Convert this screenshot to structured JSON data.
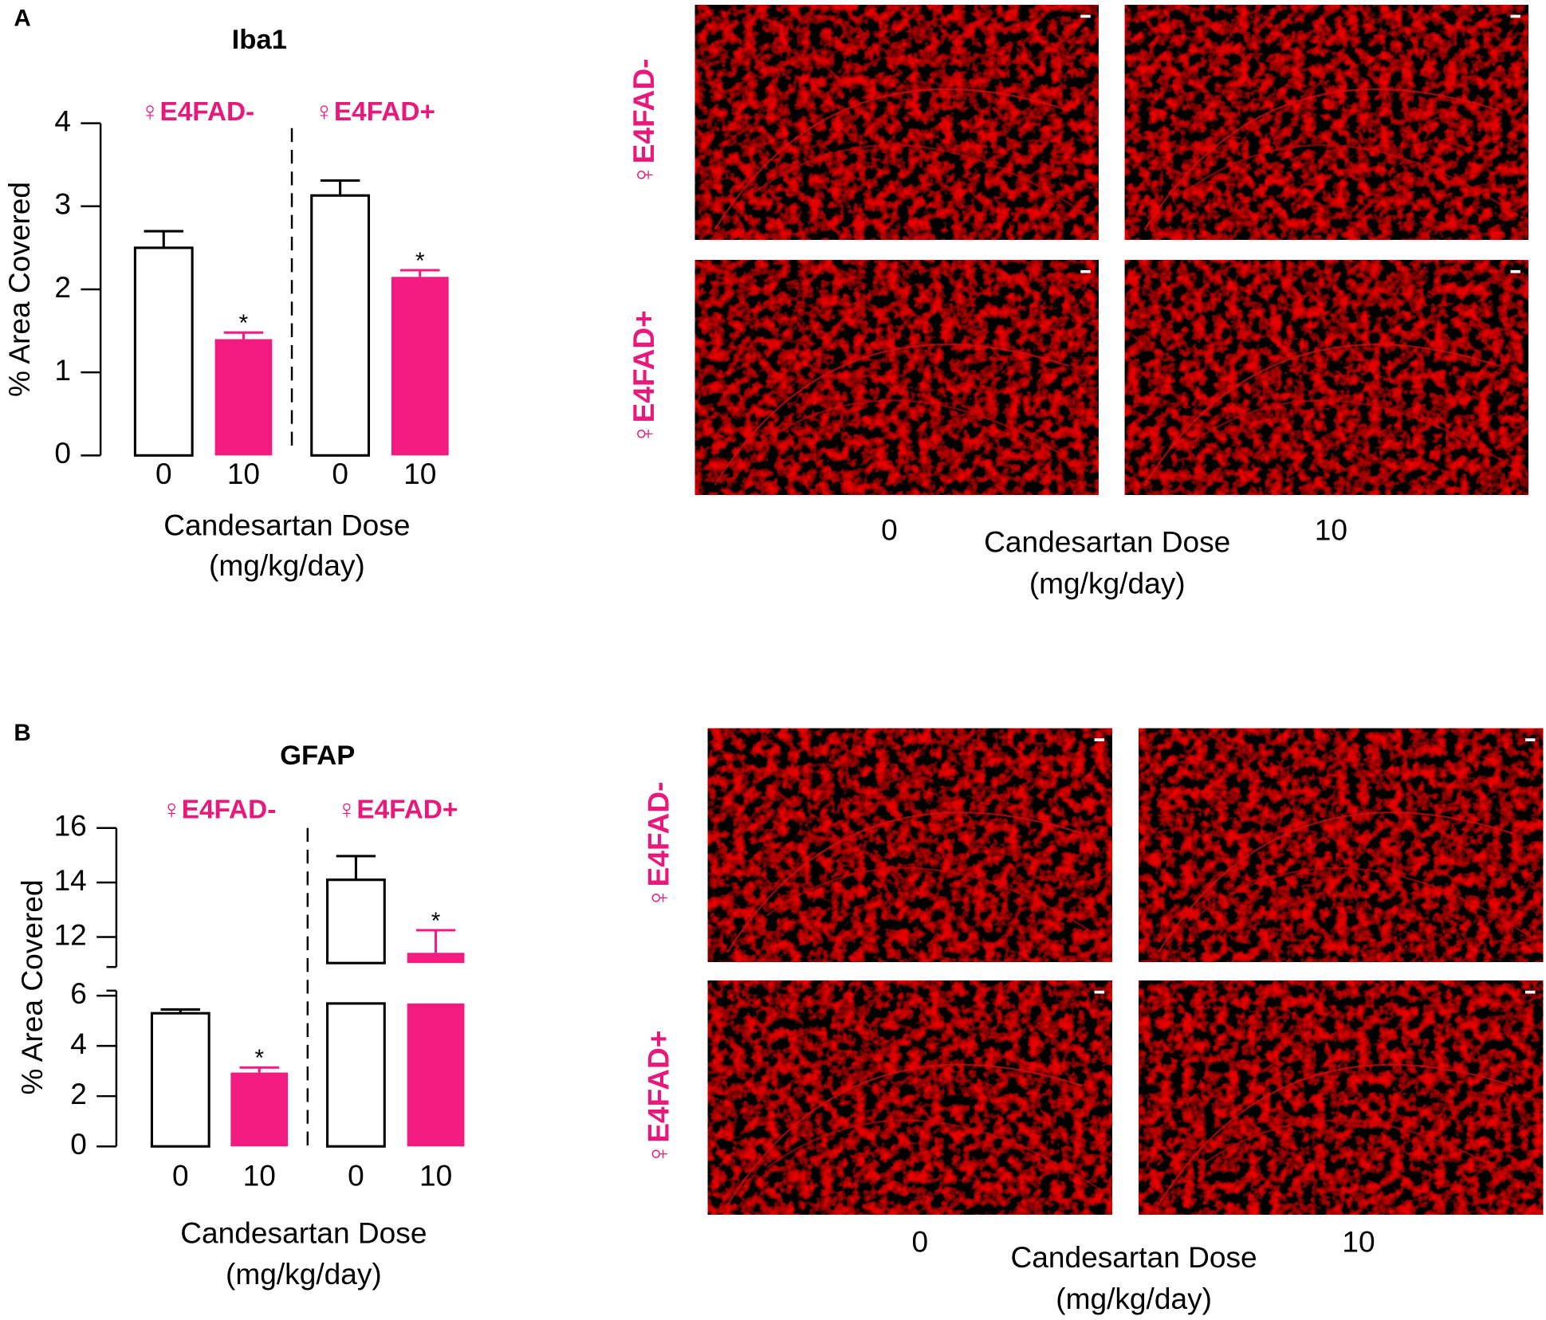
{
  "panel_labels": [
    "A",
    "B"
  ],
  "chart_data": [
    {
      "type": "bar",
      "title": "Iba1",
      "ylabel": "% Area Covered",
      "xlabel": [
        "Candesartan Dose",
        "(mg/kg/day)"
      ],
      "groups": [
        "♀E4FAD-",
        "♀E4FAD+"
      ],
      "categories": [
        "0",
        "10",
        "0",
        "10"
      ],
      "values": [
        2.5,
        1.4,
        3.13,
        2.15
      ],
      "errors": [
        0.2,
        0.08,
        0.18,
        0.08
      ],
      "colors": [
        "#ffffff",
        "#f21b7f",
        "#ffffff",
        "#f21b7f"
      ],
      "significant": [
        false,
        true,
        false,
        true
      ],
      "significance_label": "*",
      "ylim": [
        0,
        4
      ],
      "yticks": [
        0,
        1,
        2,
        3,
        4
      ]
    },
    {
      "type": "bar",
      "title": "GFAP",
      "ylabel": "% Area Covered",
      "xlabel": [
        "Candesartan Dose",
        "(mg/kg/day)"
      ],
      "groups": [
        "♀E4FAD-",
        "♀E4FAD+"
      ],
      "categories": [
        "0",
        "10",
        "0",
        "10"
      ],
      "values": [
        5.3,
        2.94,
        14.1,
        11.42
      ],
      "errors": [
        0.15,
        0.2,
        0.87,
        0.83
      ],
      "colors": [
        "#ffffff",
        "#f21b7f",
        "#ffffff",
        "#f21b7f"
      ],
      "significant": [
        false,
        true,
        false,
        true
      ],
      "significance_label": "*",
      "ylim": [
        0,
        16
      ],
      "ybreak": [
        6.2,
        10.9
      ],
      "yticks": [
        0,
        2,
        4,
        6,
        12,
        14,
        16
      ]
    }
  ],
  "micrographs": [
    {
      "rows": [
        "♀E4FAD-",
        "♀E4FAD+"
      ],
      "columns": [
        "0",
        "10"
      ],
      "xlabel": [
        "Candesartan Dose",
        "(mg/kg/day)"
      ]
    },
    {
      "rows": [
        "♀E4FAD-",
        "♀E4FAD+"
      ],
      "columns": [
        "0",
        "10"
      ],
      "xlabel": [
        "Candesartan Dose",
        "(mg/kg/day)"
      ]
    }
  ]
}
